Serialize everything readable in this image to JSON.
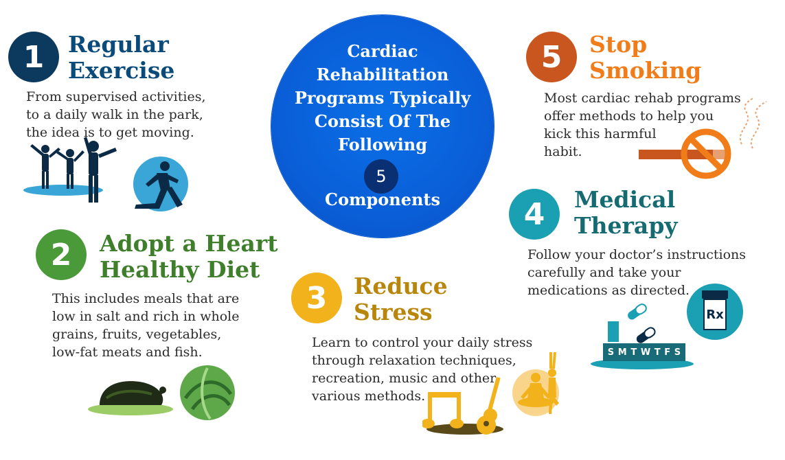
{
  "center": {
    "lines": [
      "Cardiac",
      "Rehabilitation",
      "Programs Typically",
      "Consist Of The",
      "Following"
    ],
    "number": "5",
    "components": "Components"
  },
  "items": [
    {
      "number": "1",
      "title": [
        "Regular",
        "Exercise"
      ],
      "description": [
        "From supervised activities,",
        "to a daily walk in the park,",
        "the idea is to get moving."
      ],
      "color": "#0b3a5e",
      "title_color": "#0b4b7a"
    },
    {
      "number": "2",
      "title": [
        "Adopt a Heart",
        "Healthy Diet"
      ],
      "description": [
        "This includes meals that are",
        "low in salt and rich in whole",
        "grains, fruits, vegetables,",
        "low-fat meats and fish."
      ],
      "color": "#4a9a3a",
      "title_color": "#3f7f2c"
    },
    {
      "number": "3",
      "title": [
        "Reduce",
        "Stress"
      ],
      "description": [
        "Learn to control your daily stress",
        "through relaxation techniques,",
        "recreation, music and other",
        "various methods."
      ],
      "color": "#f2b21b",
      "title_color": "#b8860b"
    },
    {
      "number": "4",
      "title": [
        "Medical",
        "Therapy"
      ],
      "description": [
        "Follow your doctor’s instructions",
        "carefully and take your",
        "medications as directed."
      ],
      "color": "#1a9fb3",
      "title_color": "#166b73"
    },
    {
      "number": "5",
      "title": [
        "Stop",
        "Smoking"
      ],
      "description": [
        "Most cardiac rehab programs",
        "offer methods to help you",
        "kick this harmful",
        "habit."
      ],
      "color": "#c8561e",
      "title_color": "#f07d1a"
    }
  ],
  "pill_calendar": {
    "days": [
      "S",
      "M",
      "T",
      "W",
      "T",
      "F",
      "S"
    ]
  },
  "rx_label": "Rx",
  "icons": {
    "exercise_group": "people-exercising-icon",
    "runner": "runner-icon",
    "chicken": "roast-chicken-icon",
    "cabbage": "cabbage-icon",
    "music": "music-note-icon",
    "guitar": "guitar-icon",
    "meditation": "meditation-icon",
    "yoga": "yoga-icon",
    "no_smoking": "no-smoking-icon",
    "pills": "pill-icon",
    "pill_box": "pill-organizer-icon",
    "rx_bottle": "prescription-bottle-icon"
  }
}
